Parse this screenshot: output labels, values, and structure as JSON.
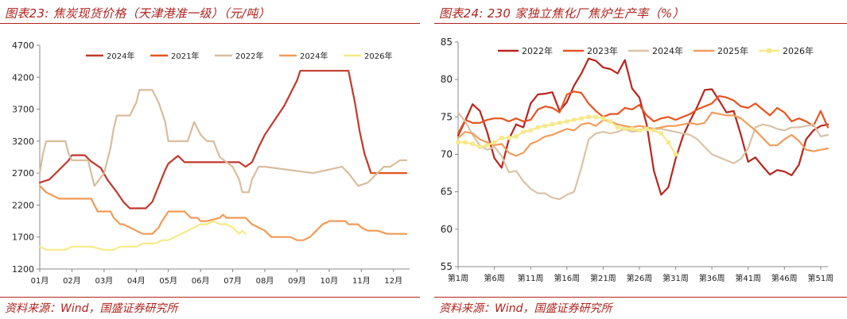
{
  "left": {
    "title": "图表23:  焦炭现货价格（天津港准一级）（元/吨）",
    "source": "资料来源：Wind，国盛证券研究所"
  },
  "right": {
    "title": "图表24:  230 家独立焦化厂焦炉生产率（%）",
    "source": "资料来源：Wind，国盛证券研究所"
  },
  "chart_data": [
    {
      "type": "line",
      "title": "图表23:  焦炭现货价格（天津港准一级）（元/吨）",
      "ylim": [
        1200,
        4700
      ],
      "yticks": [
        1200,
        1700,
        2200,
        2700,
        3200,
        3700,
        4200,
        4700
      ],
      "xlim": [
        1,
        12.5
      ],
      "xticks": [
        {
          "pos": 1,
          "label": "01月"
        },
        {
          "pos": 2,
          "label": "02月"
        },
        {
          "pos": 3,
          "label": "03月"
        },
        {
          "pos": 4,
          "label": "04月"
        },
        {
          "pos": 5,
          "label": "05月"
        },
        {
          "pos": 6,
          "label": "06月"
        },
        {
          "pos": 7,
          "label": "07月"
        },
        {
          "pos": 8,
          "label": "08月"
        },
        {
          "pos": 9,
          "label": "09月"
        },
        {
          "pos": 10,
          "label": "10月"
        },
        {
          "pos": 11,
          "label": "11月"
        },
        {
          "pos": 12,
          "label": "12月"
        }
      ],
      "legend_position": "top",
      "series": [
        {
          "name": "2024年",
          "color": "#c0392b",
          "width": 2.2,
          "x": [
            1.0,
            1.3,
            1.5,
            1.7,
            1.9,
            2.0,
            2.4,
            2.6,
            2.9,
            3.1,
            3.4,
            3.6,
            3.8,
            4.3,
            4.5,
            4.7,
            4.9,
            5.0,
            5.3,
            5.5,
            7.2,
            7.4,
            7.6,
            7.8,
            8.0,
            8.2,
            8.4,
            8.6,
            8.8,
            9.0,
            9.1,
            10.6,
            10.8,
            10.95,
            11.1,
            11.3
          ],
          "values": [
            2550,
            2600,
            2700,
            2800,
            2900,
            2980,
            2980,
            2880,
            2780,
            2600,
            2400,
            2250,
            2150,
            2150,
            2250,
            2500,
            2750,
            2850,
            2970,
            2870,
            2870,
            2800,
            2870,
            3100,
            3300,
            3450,
            3600,
            3750,
            3950,
            4150,
            4300,
            4300,
            3800,
            3350,
            3000,
            2700
          ]
        },
        {
          "name": "2021年",
          "color": "#e3561e",
          "width": 2.2,
          "x": [
            11.3,
            11.6,
            11.9,
            12.2,
            12.4
          ],
          "values": [
            2700,
            2700,
            2700,
            2700,
            2700
          ]
        },
        {
          "name": "2022年",
          "color": "#d8bd9c",
          "width": 2.2,
          "x": [
            1.0,
            1.1,
            1.2,
            1.3,
            1.8,
            1.9,
            2.0,
            2.5,
            2.6,
            2.7,
            3.0,
            3.2,
            3.3,
            3.4,
            3.6,
            3.8,
            4.0,
            4.1,
            4.5,
            4.7,
            4.9,
            5.0,
            5.6,
            5.8,
            6.0,
            6.2,
            6.4,
            6.6,
            7.0,
            7.2,
            7.3,
            7.5,
            7.6,
            7.8,
            8.0,
            9.5,
            10.4,
            10.6,
            10.9,
            11.2,
            11.5,
            11.7,
            11.9,
            12.2,
            12.4
          ],
          "values": [
            2700,
            3000,
            3200,
            3200,
            3200,
            3000,
            2900,
            2900,
            2700,
            2500,
            2700,
            3100,
            3400,
            3600,
            3600,
            3600,
            3800,
            4000,
            4000,
            3800,
            3500,
            3200,
            3200,
            3500,
            3300,
            3200,
            3200,
            2950,
            2800,
            2600,
            2400,
            2400,
            2600,
            2800,
            2800,
            2700,
            2800,
            2700,
            2500,
            2550,
            2700,
            2800,
            2800,
            2900,
            2900
          ]
        },
        {
          "name": "2024年",
          "color": "#f29a56",
          "width": 2.2,
          "x": [
            1.0,
            1.1,
            1.2,
            1.4,
            1.6,
            2.0,
            2.6,
            2.7,
            2.8,
            3.2,
            3.3,
            3.5,
            3.6,
            4.0,
            4.2,
            4.5,
            4.7,
            4.8,
            5.0,
            5.5,
            5.7,
            5.9,
            6.0,
            6.2,
            6.6,
            6.7,
            6.8,
            7.0,
            7.4,
            7.6,
            7.8,
            8.0,
            8.2,
            8.4,
            8.8,
            9.0,
            9.2,
            9.4,
            9.6,
            9.8,
            10.0,
            10.5,
            10.6,
            10.9,
            11.0,
            11.2,
            11.5,
            11.8,
            12.0,
            12.4
          ],
          "values": [
            2500,
            2450,
            2400,
            2350,
            2300,
            2300,
            2300,
            2200,
            2100,
            2100,
            2000,
            1900,
            1900,
            1800,
            1750,
            1750,
            1850,
            1950,
            2100,
            2100,
            2000,
            2000,
            1950,
            1950,
            2000,
            2050,
            2000,
            2000,
            2000,
            1900,
            1850,
            1800,
            1700,
            1700,
            1700,
            1650,
            1650,
            1700,
            1800,
            1900,
            1950,
            1950,
            1900,
            1900,
            1850,
            1800,
            1800,
            1750,
            1750,
            1750
          ]
        },
        {
          "name": "2026年",
          "color": "#f4ea86",
          "width": 2.2,
          "x": [
            1.0,
            1.2,
            1.4,
            1.6,
            1.8,
            2.0,
            2.4,
            2.6,
            3.0,
            3.3,
            3.5,
            3.8,
            4.0,
            4.2,
            4.4,
            4.6,
            4.8,
            5.0,
            5.2,
            5.4,
            5.6,
            5.8,
            6.0,
            6.2,
            6.4,
            6.6,
            6.8,
            7.0,
            7.1,
            7.2,
            7.3,
            7.4
          ],
          "values": [
            1550,
            1500,
            1500,
            1500,
            1500,
            1550,
            1550,
            1550,
            1500,
            1500,
            1550,
            1550,
            1550,
            1600,
            1600,
            1600,
            1650,
            1650,
            1700,
            1750,
            1800,
            1850,
            1900,
            1900,
            1950,
            1900,
            1900,
            1850,
            1800,
            1750,
            1800,
            1750
          ]
        }
      ]
    },
    {
      "type": "line",
      "title": "图表24:  230 家独立焦化厂焦炉生产率（%）",
      "ylim": [
        55,
        85
      ],
      "yticks": [
        55,
        60,
        65,
        70,
        75,
        80,
        85
      ],
      "xlim": [
        1,
        52
      ],
      "xticks": [
        {
          "pos": 1,
          "label": "第1周"
        },
        {
          "pos": 6,
          "label": "第6周"
        },
        {
          "pos": 11,
          "label": "第11周"
        },
        {
          "pos": 16,
          "label": "第16周"
        },
        {
          "pos": 21,
          "label": "第21周"
        },
        {
          "pos": 26,
          "label": "第26周"
        },
        {
          "pos": 31,
          "label": "第31周"
        },
        {
          "pos": 36,
          "label": "第36周"
        },
        {
          "pos": 41,
          "label": "第41周"
        },
        {
          "pos": 46,
          "label": "第46周"
        },
        {
          "pos": 51,
          "label": "第51周"
        }
      ],
      "legend_position": "top",
      "series": [
        {
          "name": "2022年",
          "color": "#b8261d",
          "width": 2.2,
          "x": [
            1,
            2,
            3,
            4,
            5,
            6,
            7,
            8,
            9,
            10,
            11,
            12,
            13,
            14,
            15,
            16,
            17,
            18,
            19,
            20,
            21,
            22,
            23,
            24,
            25,
            26,
            27,
            28,
            29,
            30,
            31,
            32,
            33,
            34,
            35,
            36,
            37,
            38,
            39,
            40,
            41,
            42,
            43,
            44,
            45,
            46,
            47,
            48,
            49,
            50,
            51,
            52
          ],
          "values": [
            72.5,
            74.5,
            76.7,
            75.8,
            73.0,
            69.5,
            68.2,
            72.0,
            74.0,
            73.6,
            76.8,
            78.0,
            78.1,
            78.3,
            75.8,
            77.0,
            79.2,
            80.8,
            82.8,
            82.5,
            81.6,
            81.4,
            80.8,
            82.6,
            78.8,
            77.6,
            74.0,
            67.8,
            64.6,
            65.6,
            69.4,
            72.4,
            74.5,
            76.4,
            78.6,
            78.7,
            77.2,
            75.6,
            75.8,
            72.6,
            69.0,
            69.6,
            68.4,
            67.3,
            67.9,
            67.7,
            67.2,
            68.6,
            72.0,
            73.2,
            73.8,
            74.0
          ]
        },
        {
          "name": "2023年",
          "color": "#e65522",
          "width": 2.2,
          "x": [
            1,
            2,
            3,
            4,
            5,
            6,
            7,
            8,
            9,
            10,
            11,
            12,
            13,
            14,
            15,
            16,
            17,
            18,
            19,
            20,
            21,
            22,
            23,
            24,
            25,
            26,
            27,
            28,
            29,
            30,
            31,
            32,
            33,
            34,
            35,
            36,
            37,
            38,
            39,
            40,
            41,
            42,
            43,
            44,
            45,
            46,
            47,
            48,
            49,
            50,
            51,
            52
          ],
          "values": [
            72.8,
            74.6,
            74.2,
            74.2,
            74.6,
            74.8,
            74.8,
            74.4,
            74.8,
            74.4,
            74.6,
            76.0,
            76.4,
            76.2,
            75.6,
            78.0,
            78.4,
            78.2,
            76.8,
            75.8,
            75.0,
            75.4,
            75.4,
            76.2,
            76.0,
            76.6,
            75.2,
            74.4,
            74.8,
            75.0,
            74.6,
            75.0,
            75.4,
            76.0,
            76.4,
            76.8,
            77.8,
            77.6,
            77.2,
            76.4,
            76.2,
            76.8,
            76.0,
            75.2,
            76.2,
            75.6,
            74.4,
            74.8,
            74.4,
            73.8,
            75.8,
            73.6
          ]
        },
        {
          "name": "2024年",
          "color": "#d9c3a8",
          "width": 2.2,
          "x": [
            1,
            2,
            3,
            4,
            5,
            6,
            7,
            8,
            9,
            10,
            11,
            12,
            13,
            14,
            15,
            16,
            17,
            18,
            19,
            20,
            21,
            22,
            23,
            24,
            25,
            26,
            27,
            28,
            29,
            30,
            31,
            32,
            33,
            34,
            35,
            36,
            37,
            38,
            39,
            40,
            41,
            42,
            43,
            44,
            45,
            46,
            47,
            48,
            49,
            50,
            51,
            52
          ],
          "values": [
            75.6,
            74.4,
            72.6,
            71.2,
            70.6,
            71.0,
            69.8,
            67.6,
            67.8,
            66.4,
            65.4,
            64.8,
            64.8,
            64.2,
            64.0,
            64.6,
            65.0,
            68.2,
            72.0,
            72.8,
            73.0,
            72.8,
            73.0,
            73.4,
            73.0,
            73.2,
            73.6,
            73.4,
            73.4,
            73.2,
            73.0,
            72.8,
            72.6,
            72.0,
            71.0,
            70.0,
            69.6,
            69.2,
            68.8,
            69.4,
            70.8,
            73.6,
            74.0,
            73.8,
            73.4,
            73.2,
            73.6,
            73.6,
            73.8,
            74.0,
            72.4,
            72.6
          ]
        },
        {
          "name": "2025年",
          "color": "#f29c5a",
          "width": 2.2,
          "x": [
            1,
            2,
            3,
            4,
            5,
            6,
            7,
            8,
            9,
            10,
            11,
            12,
            13,
            14,
            15,
            16,
            17,
            18,
            19,
            20,
            21,
            22,
            23,
            24,
            25,
            26,
            27,
            28,
            29,
            30,
            31,
            32,
            33,
            34,
            35,
            36,
            37,
            38,
            39,
            40,
            41,
            42,
            43,
            44,
            45,
            46,
            47,
            48,
            49,
            50,
            51,
            52
          ],
          "values": [
            72.2,
            73.0,
            72.8,
            72.0,
            71.6,
            71.2,
            71.4,
            70.2,
            69.8,
            70.2,
            71.4,
            71.8,
            72.4,
            72.6,
            73.0,
            73.4,
            73.2,
            74.0,
            74.2,
            73.8,
            74.6,
            74.4,
            74.0,
            73.8,
            73.6,
            73.8,
            73.6,
            73.4,
            73.6,
            73.8,
            73.8,
            74.0,
            74.2,
            74.0,
            74.2,
            75.6,
            75.4,
            75.2,
            75.2,
            74.8,
            74.0,
            73.2,
            72.2,
            71.2,
            71.2,
            72.0,
            72.6,
            71.8,
            70.6,
            70.4,
            70.6,
            70.8
          ]
        },
        {
          "name": "2026年",
          "color": "#f5e98a",
          "width": 2.2,
          "marker": true,
          "x": [
            1,
            2,
            3,
            4,
            5,
            6,
            7,
            8,
            9,
            10,
            11,
            12,
            13,
            14,
            15,
            16,
            17,
            18,
            19,
            20,
            21,
            22,
            23,
            24,
            25,
            26,
            27,
            28,
            29,
            30,
            31
          ],
          "values": [
            71.6,
            71.6,
            71.4,
            71.0,
            71.2,
            71.6,
            72.2,
            72.2,
            72.4,
            73.0,
            73.2,
            73.6,
            73.8,
            74.0,
            74.2,
            74.4,
            74.6,
            74.8,
            75.0,
            75.0,
            74.8,
            74.4,
            73.6,
            73.4,
            73.4,
            73.2,
            73.4,
            73.2,
            72.8,
            71.6,
            70.0
          ]
        }
      ]
    }
  ]
}
